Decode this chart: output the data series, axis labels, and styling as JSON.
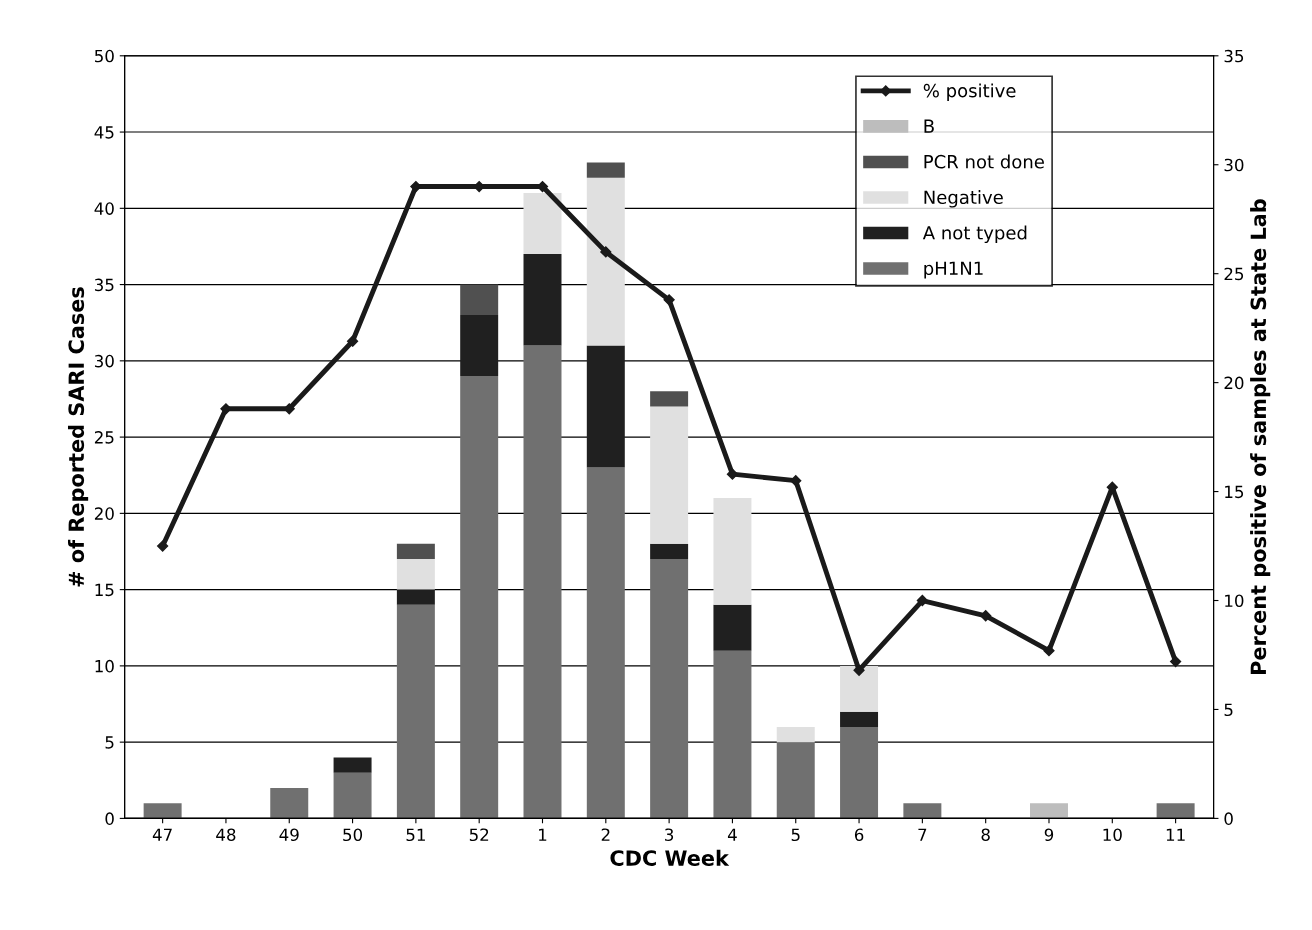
{
  "chart_data": {
    "type": "bar",
    "stacked": true,
    "xlabel": "CDC Week",
    "ylabel": "# of Reported SARI Cases",
    "y2label": "Percent positive of samples at State Lab",
    "categories": [
      "47",
      "48",
      "49",
      "50",
      "51",
      "52",
      "1",
      "2",
      "3",
      "4",
      "5",
      "6",
      "7",
      "8",
      "9",
      "10",
      "11"
    ],
    "series": [
      {
        "name": "pH1N1",
        "color": "#707070",
        "values": [
          1,
          0,
          2,
          3,
          14,
          29,
          31,
          23,
          17,
          11,
          5,
          6,
          1,
          0,
          0,
          0,
          1
        ]
      },
      {
        "name": "A not typed",
        "color": "#202020",
        "values": [
          0,
          0,
          0,
          1,
          1,
          4,
          6,
          8,
          1,
          3,
          0,
          1,
          0,
          0,
          0,
          0,
          0
        ]
      },
      {
        "name": "Negative",
        "color": "#e0e0e0",
        "values": [
          0,
          0,
          0,
          0,
          2,
          0,
          4,
          11,
          9,
          7,
          1,
          3,
          0,
          0,
          0,
          0,
          0
        ]
      },
      {
        "name": "PCR not done",
        "color": "#505050",
        "values": [
          0,
          0,
          0,
          0,
          1,
          2,
          0,
          1,
          1,
          0,
          0,
          0,
          0,
          0,
          0,
          0,
          0
        ]
      },
      {
        "name": "B",
        "color": "#bdbdbd",
        "values": [
          0,
          0,
          0,
          0,
          0,
          0,
          0,
          0,
          0,
          0,
          0,
          0,
          0,
          0,
          1,
          0,
          0
        ]
      },
      {
        "name": "% positive",
        "type": "line",
        "axis": "y2",
        "color": "#1a1a1a",
        "marker": "diamond",
        "values": [
          12.5,
          18.8,
          18.8,
          21.9,
          29,
          29,
          29,
          26,
          23.8,
          15.8,
          15.5,
          6.8,
          10,
          9.3,
          7.7,
          15.2,
          7.2
        ]
      }
    ],
    "ylim": [
      0,
      50
    ],
    "yticks": [
      0,
      5,
      10,
      15,
      20,
      25,
      30,
      35,
      40,
      45,
      50
    ],
    "y2lim": [
      0,
      35
    ],
    "y2ticks": [
      0,
      5,
      10,
      15,
      20,
      25,
      30,
      35
    ],
    "grid": "y",
    "legend": "top right"
  }
}
